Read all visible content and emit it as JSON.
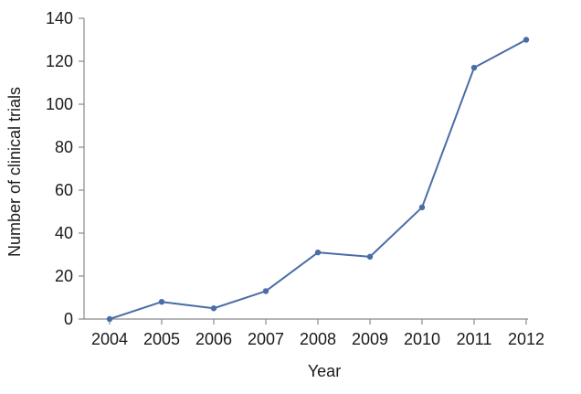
{
  "chart_data": {
    "type": "line",
    "title": "",
    "xlabel": "Year",
    "ylabel": "Number of clinical trials",
    "x": [
      "2004",
      "2005",
      "2006",
      "2007",
      "2008",
      "2009",
      "2010",
      "2011",
      "2012"
    ],
    "series": [
      {
        "values": [
          0,
          8,
          5,
          13,
          31,
          29,
          52,
          117,
          130
        ],
        "color": "#4a6da7"
      }
    ],
    "ylim": [
      0,
      140
    ],
    "yticks": [
      0,
      20,
      40,
      60,
      80,
      100,
      120,
      140
    ],
    "grid": false,
    "legend": "none"
  }
}
